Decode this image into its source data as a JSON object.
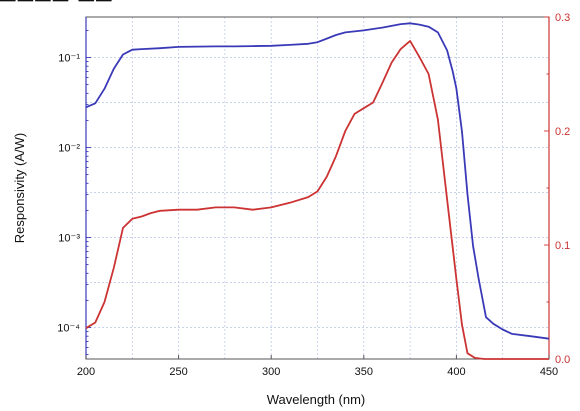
{
  "chart_data": {
    "type": "line",
    "xlabel": "Wavelength (nm)",
    "ylabel_left": "Responsivity (A/W)",
    "ylabel_right": "",
    "xlim": [
      200,
      450
    ],
    "xticks": [
      "200",
      "250",
      "300",
      "350",
      "400",
      "450"
    ],
    "ylim_left_log10": [
      -4.35,
      -0.55
    ],
    "yticks_left": [
      "10⁻¹",
      "10⁻²",
      "10⁻³",
      "10⁻⁴"
    ],
    "yticks_left_values": [
      0.1,
      0.01,
      0.001,
      0.0001
    ],
    "ylim_right": [
      0,
      0.3
    ],
    "yticks_right": [
      "0.0",
      "0.1",
      "0.2",
      "0.3"
    ],
    "yticks_right_values": [
      0.0,
      0.1,
      0.2,
      0.3
    ],
    "grid": true,
    "series": [
      {
        "axis": "left-log",
        "color": "#3a3ab8",
        "points": [
          [
            200,
            0.028
          ],
          [
            205,
            0.031
          ],
          [
            210,
            0.045
          ],
          [
            215,
            0.075
          ],
          [
            220,
            0.108
          ],
          [
            225,
            0.122
          ],
          [
            230,
            0.124
          ],
          [
            240,
            0.127
          ],
          [
            250,
            0.131
          ],
          [
            260,
            0.132
          ],
          [
            270,
            0.133
          ],
          [
            280,
            0.133
          ],
          [
            290,
            0.134
          ],
          [
            300,
            0.135
          ],
          [
            310,
            0.138
          ],
          [
            320,
            0.142
          ],
          [
            325,
            0.148
          ],
          [
            330,
            0.162
          ],
          [
            335,
            0.178
          ],
          [
            340,
            0.19
          ],
          [
            350,
            0.2
          ],
          [
            360,
            0.215
          ],
          [
            370,
            0.235
          ],
          [
            375,
            0.24
          ],
          [
            380,
            0.232
          ],
          [
            385,
            0.22
          ],
          [
            390,
            0.19
          ],
          [
            395,
            0.12
          ],
          [
            398,
            0.07
          ],
          [
            400,
            0.045
          ],
          [
            403,
            0.015
          ],
          [
            406,
            0.003
          ],
          [
            409,
            0.0008
          ],
          [
            412,
            0.00035
          ],
          [
            416,
            0.00013
          ],
          [
            420,
            0.00011
          ],
          [
            425,
            9.5e-05
          ],
          [
            430,
            8.5e-05
          ],
          [
            440,
            8e-05
          ],
          [
            450,
            7.5e-05
          ]
        ]
      },
      {
        "axis": "right-linear",
        "color": "#cc3333",
        "points": [
          [
            200,
            0.027
          ],
          [
            205,
            0.032
          ],
          [
            210,
            0.05
          ],
          [
            215,
            0.08
          ],
          [
            220,
            0.115
          ],
          [
            225,
            0.123
          ],
          [
            230,
            0.125
          ],
          [
            235,
            0.128
          ],
          [
            240,
            0.13
          ],
          [
            250,
            0.131
          ],
          [
            260,
            0.131
          ],
          [
            270,
            0.133
          ],
          [
            280,
            0.133
          ],
          [
            290,
            0.131
          ],
          [
            300,
            0.133
          ],
          [
            310,
            0.137
          ],
          [
            320,
            0.142
          ],
          [
            325,
            0.147
          ],
          [
            330,
            0.16
          ],
          [
            335,
            0.178
          ],
          [
            340,
            0.2
          ],
          [
            345,
            0.215
          ],
          [
            350,
            0.22
          ],
          [
            355,
            0.225
          ],
          [
            360,
            0.242
          ],
          [
            365,
            0.26
          ],
          [
            370,
            0.272
          ],
          [
            375,
            0.279
          ],
          [
            380,
            0.265
          ],
          [
            385,
            0.25
          ],
          [
            390,
            0.21
          ],
          [
            395,
            0.14
          ],
          [
            400,
            0.07
          ],
          [
            403,
            0.03
          ],
          [
            406,
            0.005
          ],
          [
            410,
            0.001
          ],
          [
            415,
            0.0
          ],
          [
            450,
            0.0
          ]
        ]
      }
    ]
  }
}
